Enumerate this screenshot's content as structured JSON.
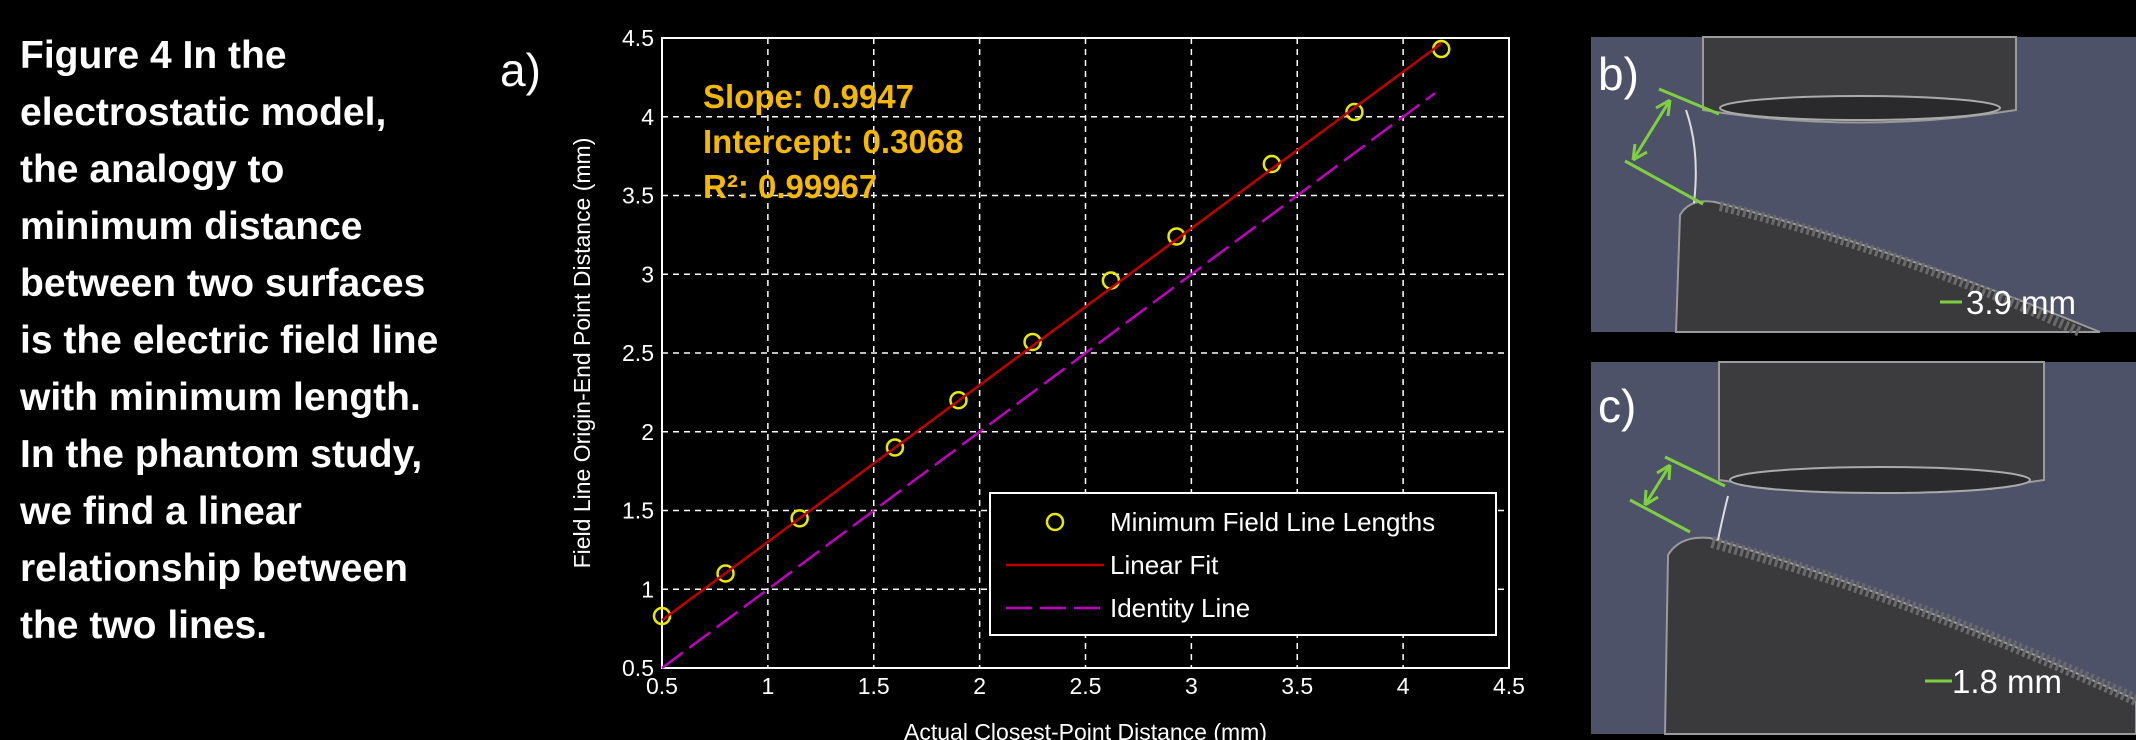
{
  "caption": [
    "Figure 4 In the",
    "electrostatic model,",
    "the analogy to",
    "minimum distance",
    "between two surfaces",
    "is the electric field line",
    "with minimum length.",
    "In the phantom study,",
    "we find a linear",
    "relationship between",
    "the  two lines."
  ],
  "panels": {
    "a": "a)",
    "b": "b)",
    "c": "c)",
    "b_measure": "3.9 mm",
    "c_measure": "1.8 mm"
  },
  "chart_data": {
    "type": "scatter",
    "xlabel": "Actual Closest-Point Distance (mm)",
    "ylabel": "Field Line Origin-End Point Distance (mm)",
    "annotations": [
      "Slope: 0.9947",
      "Intercept: 0.3068",
      "R²: 0.99967"
    ],
    "xlim": [
      0.5,
      4.5
    ],
    "ylim": [
      0.5,
      4.5
    ],
    "xticks": [
      0.5,
      1,
      1.5,
      2,
      2.5,
      3,
      3.5,
      4,
      4.5
    ],
    "yticks": [
      0.5,
      1,
      1.5,
      2,
      2.5,
      3,
      3.5,
      4,
      4.5
    ],
    "grid": true,
    "legend": "lower right",
    "series": [
      {
        "name": "Minimum Field Line Lengths",
        "color": "#e8e800",
        "style": "marker",
        "x": [
          0.5,
          0.8,
          1.15,
          1.6,
          1.9,
          2.25,
          2.62,
          2.93,
          3.38,
          3.77,
          4.18
        ],
        "values": [
          0.83,
          1.1,
          1.45,
          1.9,
          2.2,
          2.57,
          2.96,
          3.24,
          3.7,
          4.03,
          4.43
        ]
      },
      {
        "name": "Linear Fit",
        "color": "#c00000",
        "style": "solid",
        "x": [
          0.5,
          4.18
        ],
        "values": [
          0.804,
          4.465
        ]
      },
      {
        "name": "Identity Line",
        "color": "#c000c0",
        "style": "dashed",
        "x": [
          0.5,
          4.15
        ],
        "values": [
          0.5,
          4.15
        ]
      }
    ]
  }
}
